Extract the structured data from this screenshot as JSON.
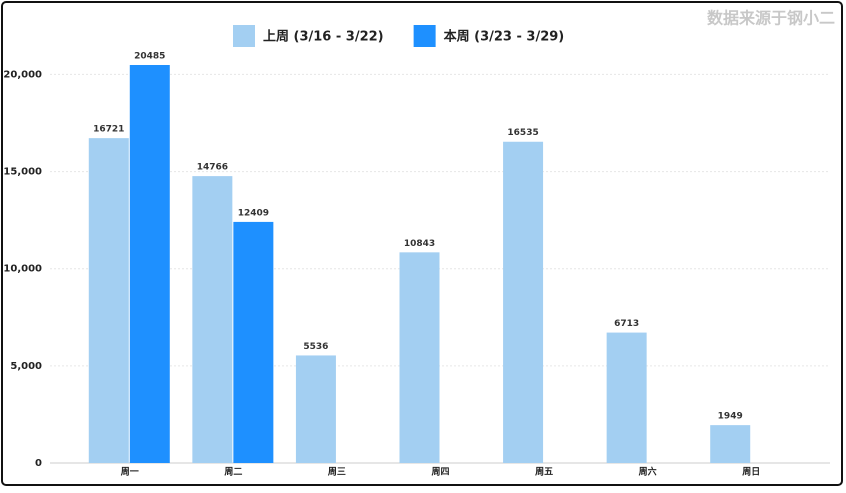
{
  "chart_data": {
    "type": "bar",
    "source": "数据来源于钢小二",
    "categories": [
      "周一",
      "周二",
      "周三",
      "周四",
      "周五",
      "周六",
      "周日"
    ],
    "series": [
      {
        "name": "上周 (3/16 - 3/22)",
        "color": "#a3cff2",
        "values": [
          16721,
          14766,
          5536,
          10843,
          16535,
          6713,
          1949
        ]
      },
      {
        "name": "本周 (3/23 - 3/29)",
        "color": "#1e90ff",
        "values": [
          20485,
          12409,
          null,
          null,
          null,
          null,
          null
        ]
      }
    ],
    "ylim": [
      0,
      21000
    ],
    "yticks": [
      0,
      {
        "value": 5000,
        "label": "5,000"
      },
      {
        "value": 10000,
        "label": "10,000"
      },
      {
        "value": 15000,
        "label": "15,000"
      },
      {
        "value": 20000,
        "label": "20,000"
      }
    ],
    "grid": true
  }
}
